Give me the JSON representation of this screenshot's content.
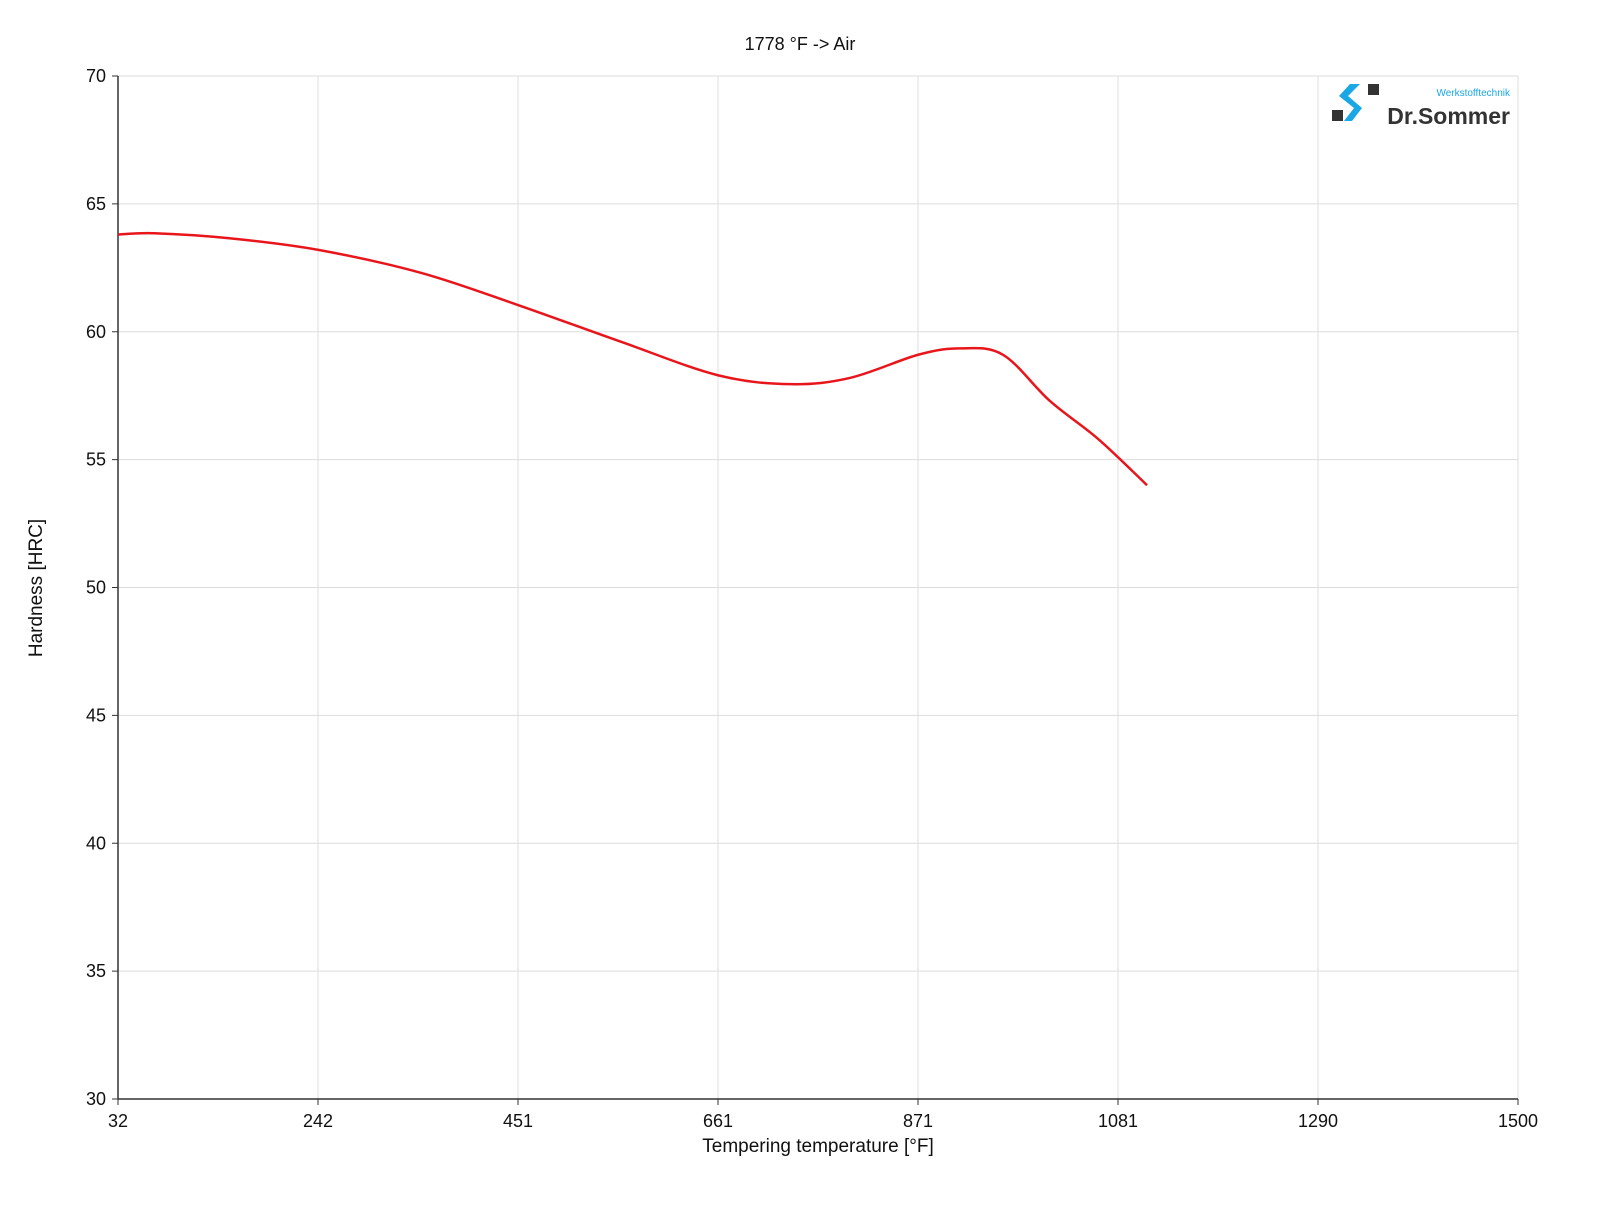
{
  "chart_data": {
    "type": "line",
    "title": "1778 °F -> Air",
    "xlabel": "Tempering temperature [°F]",
    "ylabel": "Hardness [HRC]",
    "xlim": [
      32,
      1500
    ],
    "ylim": [
      30,
      70
    ],
    "x_ticks": [
      "32",
      "242",
      "451",
      "661",
      "871",
      "1081",
      "1290",
      "1500"
    ],
    "y_ticks": [
      "30",
      "35",
      "40",
      "45",
      "50",
      "55",
      "60",
      "65",
      "70"
    ],
    "grid": true,
    "series": [
      {
        "color": "#e8161b",
        "x": [
          32,
          70,
          150,
          242,
          350,
          451,
          560,
          661,
          737,
          800,
          871,
          915,
          960,
          1009,
          1060,
          1111
        ],
        "y": [
          63.8,
          63.85,
          63.65,
          63.2,
          62.3,
          61.05,
          59.6,
          58.3,
          57.95,
          58.2,
          59.1,
          59.35,
          59.1,
          57.3,
          55.8,
          54.0
        ]
      }
    ]
  },
  "logo": {
    "name": "Dr.Sommer",
    "subtitle": "Werkstofftechnik",
    "colors": {
      "blue": "#1aa7e6",
      "dark": "#333333"
    }
  }
}
